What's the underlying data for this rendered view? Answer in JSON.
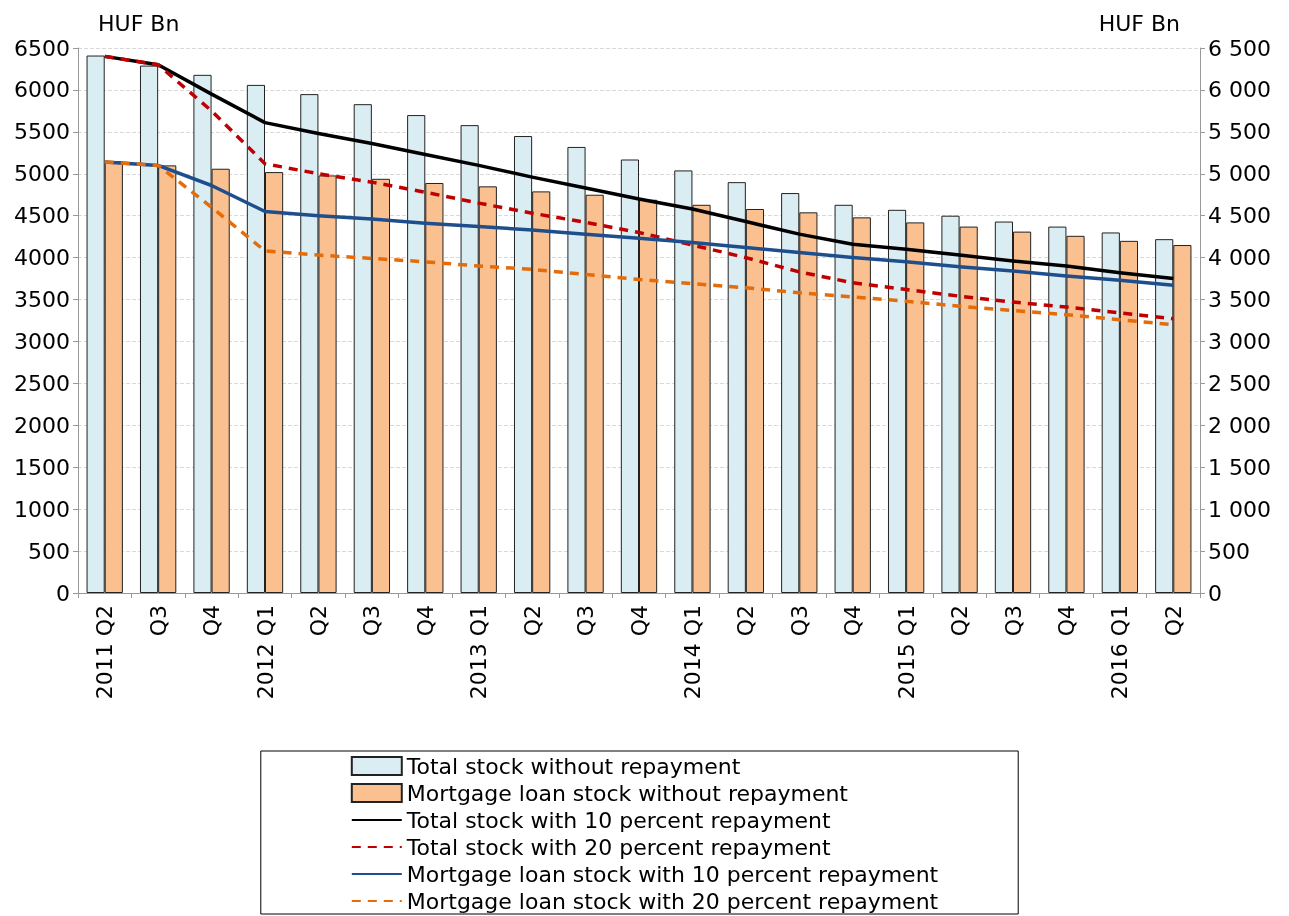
{
  "chart_data": {
    "type": "bar",
    "ylabel": "HUF Bn",
    "y2label": "HUF Bn",
    "categories": [
      "2011 Q2",
      "Q3",
      "Q4",
      "2012 Q1",
      "Q2",
      "Q3",
      "Q4",
      "2013 Q1",
      "Q2",
      "Q3",
      "Q4",
      "2014 Q1",
      "Q2",
      "Q3",
      "Q4",
      "2015 Q1",
      "Q2",
      "Q3",
      "Q4",
      "2016 Q1",
      "Q2"
    ],
    "series": [
      {
        "name": "Total stock without repayment",
        "color": "#daedf3",
        "values": [
          6410,
          6290,
          6180,
          6060,
          5950,
          5830,
          5700,
          5580,
          5450,
          5320,
          5170,
          5040,
          4900,
          4770,
          4630,
          4570,
          4500,
          4430,
          4370,
          4300,
          4220
        ]
      },
      {
        "name": "Mortgage loan stock without repayment",
        "color": "#fac090",
        "values": [
          5150,
          5100,
          5060,
          5020,
          4980,
          4940,
          4890,
          4850,
          4790,
          4750,
          4690,
          4630,
          4580,
          4540,
          4480,
          4420,
          4370,
          4310,
          4260,
          4200,
          4150
        ]
      },
      {
        "name": "Total stock with 10 percent repayment",
        "type": "line",
        "line_style": "solid",
        "color": "#000000",
        "values": [
          6400,
          6300,
          5950,
          5610,
          5480,
          5360,
          5230,
          5100,
          4960,
          4830,
          4700,
          4580,
          4430,
          4280,
          4160,
          4100,
          4030,
          3960,
          3900,
          3820,
          3750
        ]
      },
      {
        "name": "Total stock with 20 percent repayment",
        "type": "line",
        "line_style": "dashed",
        "color": "#c00000",
        "values": [
          6400,
          6300,
          5750,
          5120,
          5000,
          4900,
          4780,
          4650,
          4530,
          4420,
          4300,
          4150,
          4000,
          3830,
          3700,
          3620,
          3540,
          3470,
          3410,
          3340,
          3270
        ]
      },
      {
        "name": "Mortgage loan stock with 10 percent repayment",
        "type": "line",
        "line_style": "solid",
        "color": "#1f4e8c",
        "values": [
          5140,
          5100,
          4860,
          4550,
          4500,
          4460,
          4410,
          4370,
          4330,
          4280,
          4230,
          4180,
          4120,
          4060,
          4000,
          3950,
          3890,
          3840,
          3780,
          3730,
          3670
        ]
      },
      {
        "name": "Mortgage loan stock with 20 percent repayment",
        "type": "line",
        "line_style": "dashed",
        "color": "#e46c0a",
        "values": [
          5140,
          5100,
          4600,
          4080,
          4030,
          3990,
          3950,
          3900,
          3860,
          3800,
          3740,
          3690,
          3640,
          3580,
          3530,
          3480,
          3420,
          3370,
          3320,
          3260,
          3200
        ]
      }
    ],
    "ylim": [
      0,
      6500
    ],
    "yticks": [
      0,
      500,
      1000,
      1500,
      2000,
      2500,
      3000,
      3500,
      4000,
      4500,
      5000,
      5500,
      6000,
      6500
    ],
    "y2lim": [
      0,
      6500
    ],
    "y2ticks": [
      0,
      500,
      {
        "value": 1000,
        "label": "1 000"
      },
      {
        "value": 1500,
        "label": "1 500"
      },
      {
        "value": 2000,
        "label": "2 000"
      },
      {
        "value": 2500,
        "label": "2 500"
      },
      {
        "value": 3000,
        "label": "3 000"
      },
      {
        "value": 3500,
        "label": "3 500"
      },
      {
        "value": 4000,
        "label": "4 000"
      },
      {
        "value": 4500,
        "label": "4 500"
      },
      {
        "value": 5000,
        "label": "5 000"
      },
      {
        "value": 5500,
        "label": "5 500"
      },
      {
        "value": 6000,
        "label": "6 000"
      },
      {
        "value": 6500,
        "label": "6 500"
      }
    ],
    "grid": "y",
    "legend": "bottom",
    "marker": "none"
  }
}
